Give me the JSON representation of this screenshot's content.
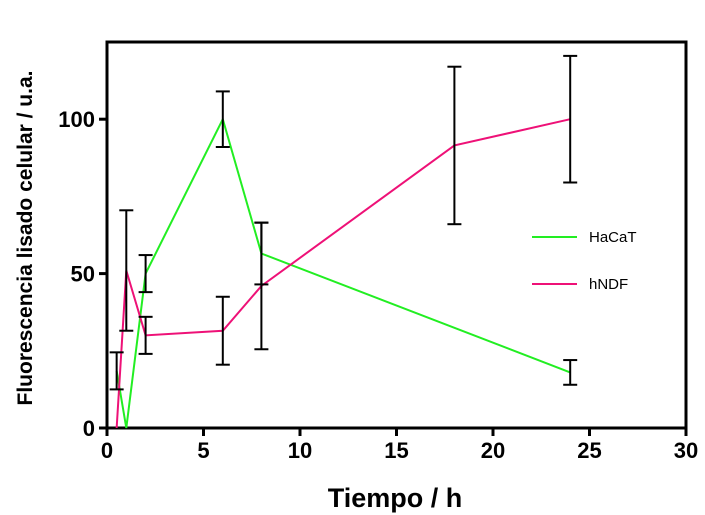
{
  "chart_data": {
    "type": "line",
    "xlabel": "Tiempo / h",
    "ylabel": "Fluorescencia lisado celular / u.a.",
    "xlim": [
      0,
      30
    ],
    "ylim": [
      0,
      125
    ],
    "xticks": [
      0,
      5,
      10,
      15,
      20,
      25,
      30
    ],
    "xtick_labels": [
      "0",
      "5",
      "10",
      "15",
      "20",
      "25",
      "30"
    ],
    "yticks": [
      0,
      50,
      100
    ],
    "ytick_labels": [
      "0",
      "50",
      "100"
    ],
    "grid": false,
    "legend_position": "right",
    "series": [
      {
        "name": "HaCaT",
        "color": "#22ee22",
        "x": [
          0.5,
          1,
          2,
          6,
          8,
          24
        ],
        "y": [
          18.5,
          0,
          50,
          100,
          56.5,
          18
        ],
        "error": [
          6,
          0,
          6,
          9,
          10,
          4
        ]
      },
      {
        "name": "hNDF",
        "color": "#ee1177",
        "x": [
          0.5,
          1,
          2,
          6,
          8,
          18,
          24
        ],
        "y": [
          0,
          51,
          30,
          31.5,
          46,
          91.5,
          100
        ],
        "error": [
          0,
          19.5,
          6,
          11,
          20.5,
          25.5,
          20.5
        ]
      }
    ]
  }
}
